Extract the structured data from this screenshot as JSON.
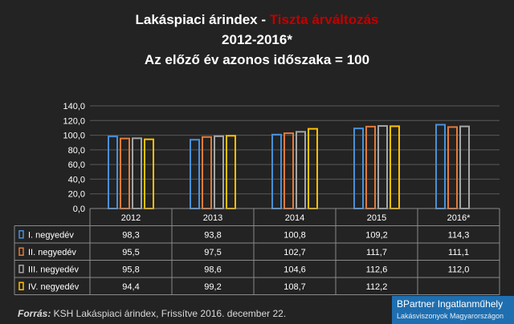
{
  "title": {
    "line1_prefix": "Lakáspiaci árindex - ",
    "line1_accent": "Tiszta árváltozás",
    "line2": "2012-2016*",
    "line3": "Az előző év azonos időszaka = 100",
    "accent_color": "#c00000"
  },
  "chart_data": {
    "type": "bar",
    "categories": [
      "2012",
      "2013",
      "2014",
      "2015",
      "2016*"
    ],
    "series": [
      {
        "name": "I. negyedév",
        "color": "#4a90d9",
        "values": [
          98.3,
          93.8,
          100.8,
          109.2,
          114.3
        ]
      },
      {
        "name": "II. negyedév",
        "color": "#e07b39",
        "values": [
          95.5,
          97.5,
          102.7,
          111.7,
          111.1
        ]
      },
      {
        "name": "III. negyedév",
        "color": "#a5a5a5",
        "values": [
          95.8,
          98.6,
          104.6,
          112.6,
          112.0
        ]
      },
      {
        "name": "IV. negyedév",
        "color": "#ffc000",
        "values": [
          94.4,
          99.2,
          108.7,
          112.2,
          null
        ]
      }
    ],
    "value_labels": [
      [
        "98,3",
        "93,8",
        "100,8",
        "109,2",
        "114,3"
      ],
      [
        "95,5",
        "97,5",
        "102,7",
        "111,7",
        "111,1"
      ],
      [
        "95,8",
        "98,6",
        "104,6",
        "112,6",
        "112,0"
      ],
      [
        "94,4",
        "99,2",
        "108,7",
        "112,2",
        ""
      ]
    ],
    "y_ticks": [
      {
        "value": 0,
        "label": "0,0"
      },
      {
        "value": 20,
        "label": "20,0"
      },
      {
        "value": 40,
        "label": "40,0"
      },
      {
        "value": 60,
        "label": "60,0"
      },
      {
        "value": 80,
        "label": "80,0"
      },
      {
        "value": 100,
        "label": "100,0"
      },
      {
        "value": 120,
        "label": "120,0"
      },
      {
        "value": 140,
        "label": "140,0"
      }
    ],
    "ylim": [
      0,
      140
    ],
    "grid": true,
    "legend": "data-table"
  },
  "footer": {
    "source_label": "Forrás:",
    "source_text": " KSH Lakáspiaci árindex, Frissítve 2016. december 22."
  },
  "brand": {
    "name": "BPartner Ingatlanműhely",
    "tagline": "Lakásviszonyok Magyarországon"
  }
}
